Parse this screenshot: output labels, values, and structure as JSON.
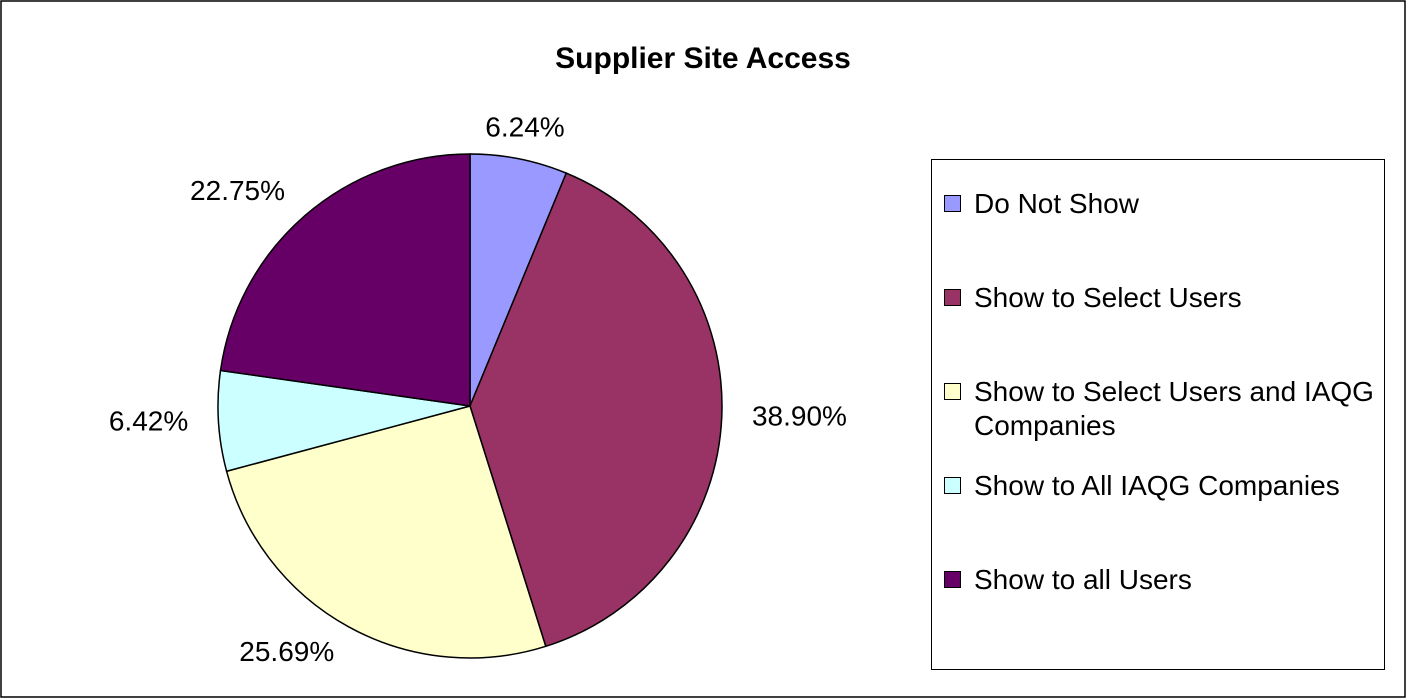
{
  "chart_data": {
    "type": "pie",
    "title": "Supplier Site Access",
    "categories": [
      "Do Not Show",
      "Show to Select Users",
      "Show to Select Users and IAQG Companies",
      "Show to All IAQG Companies",
      "Show to all Users"
    ],
    "values": [
      6.24,
      38.9,
      25.69,
      6.42,
      22.75
    ],
    "value_labels": [
      "6.24%",
      "38.90%",
      "25.69%",
      "6.42%",
      "22.75%"
    ],
    "colors": [
      "#9999ff",
      "#993366",
      "#ffffcc",
      "#ccffff",
      "#660066"
    ],
    "legend": "right"
  }
}
